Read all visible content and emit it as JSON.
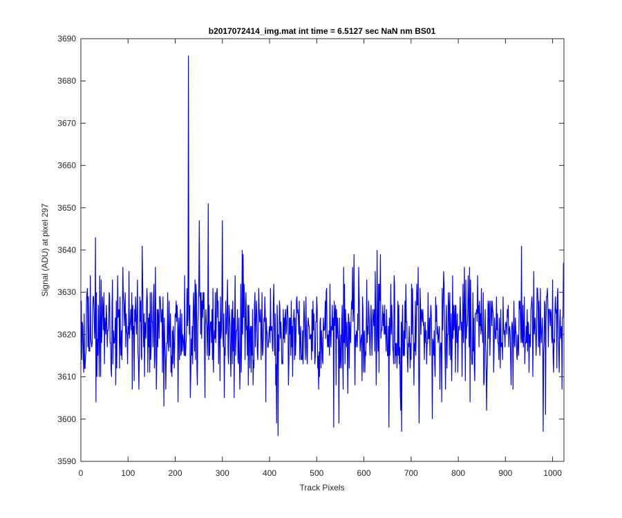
{
  "chart_data": {
    "type": "line",
    "title": "b2017072414_img.mat int time = 6.5127 sec  NaN nm BS01",
    "xlabel": "Track Pixels",
    "ylabel": "Signal (ADU) at pixel 297",
    "xlim": [
      0,
      1024
    ],
    "ylim": [
      3590,
      3690
    ],
    "xticks": [
      0,
      100,
      200,
      300,
      400,
      500,
      600,
      700,
      800,
      900,
      1000
    ],
    "yticks": [
      3590,
      3600,
      3610,
      3620,
      3630,
      3640,
      3650,
      3660,
      3670,
      3680,
      3690
    ],
    "grid": false,
    "box": true,
    "line_color": "#0000ff",
    "series": [
      {
        "n_points": 1024,
        "baseline": 3621,
        "noise_sd": 6.5,
        "x": [
          0,
          8,
          16,
          24,
          31,
          32,
          40,
          55,
          80,
          104,
          130,
          150,
          176,
          190,
          214,
          226,
          228,
          229,
          232,
          240,
          251,
          263,
          270,
          282,
          300,
          325,
          342,
          366,
          392,
          415,
          418,
          440,
          471,
          500,
          547,
          580,
          628,
          653,
          680,
          700,
          745,
          760,
          780,
          810,
          860,
          900,
          930,
          980,
          985,
          1010,
          1020,
          1023
        ],
        "y": [
          3624,
          3612,
          3629,
          3618,
          3643,
          3604,
          3634,
          3623,
          3625,
          3622,
          3641,
          3630,
          3603,
          3625,
          3625,
          3622,
          3686,
          3628,
          3605,
          3624,
          3647,
          3605,
          3651,
          3618,
          3647,
          3605,
          3640,
          3614,
          3604,
          3599,
          3596,
          3608,
          3613,
          3629,
          3599,
          3620,
          3640,
          3598,
          3597,
          3614,
          3600,
          3622,
          3627,
          3632,
          3602,
          3622,
          3626,
          3597,
          3601,
          3629,
          3607,
          3637
        ]
      }
    ]
  }
}
